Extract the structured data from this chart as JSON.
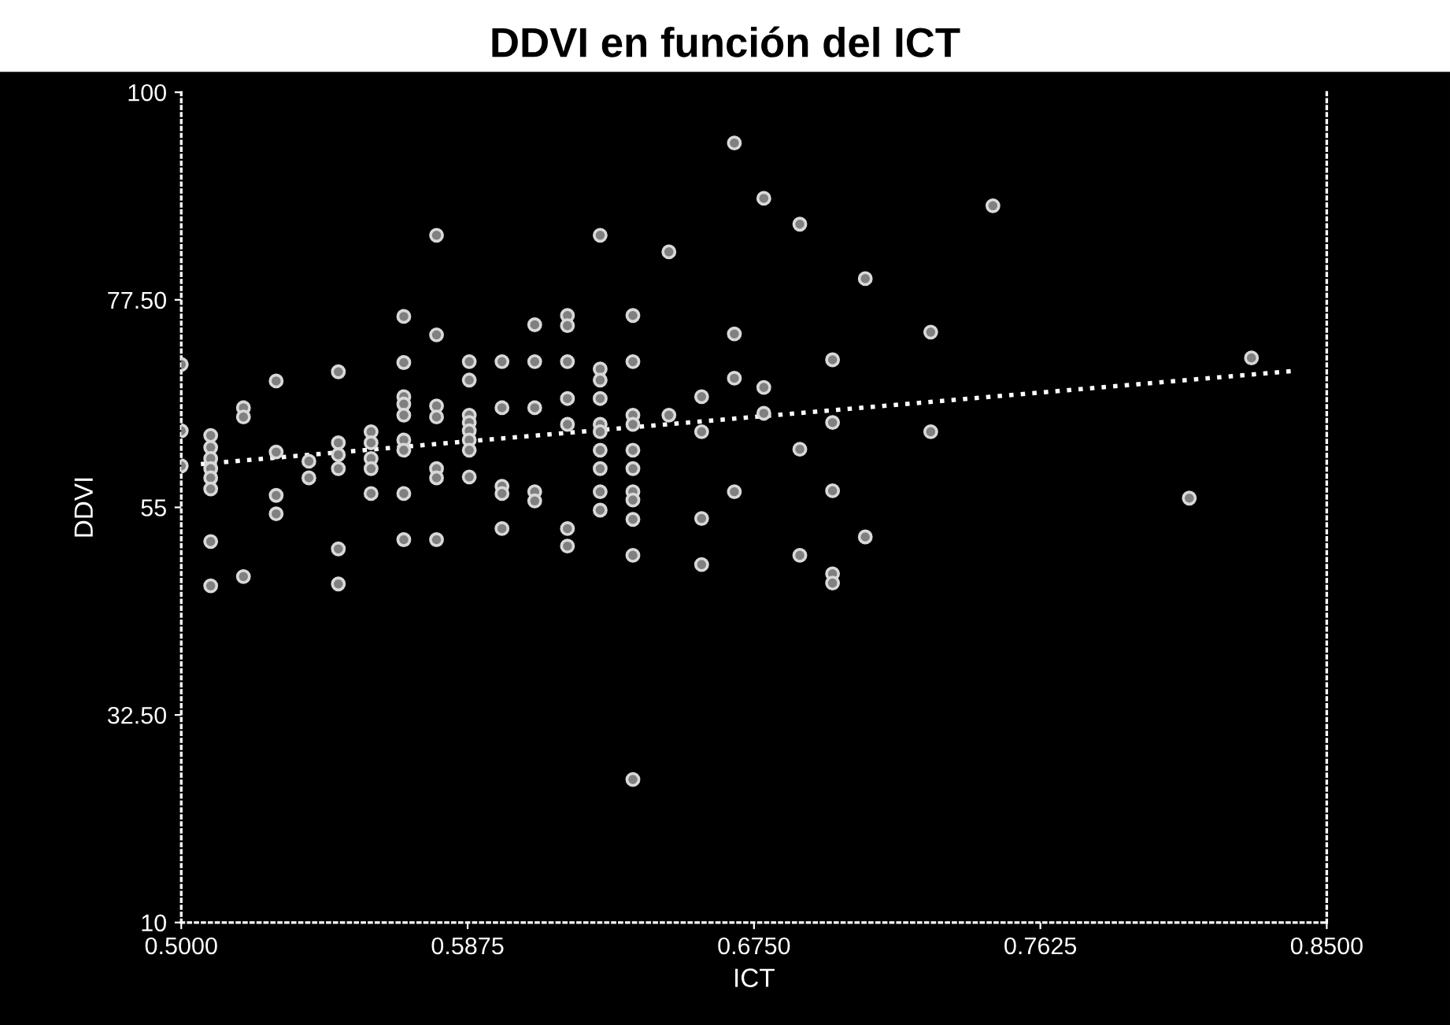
{
  "chart_data": {
    "type": "scatter",
    "title": "DDVI en función del ICT",
    "xlabel": "ICT",
    "ylabel": "DDVI",
    "xlim": [
      0.5,
      0.85
    ],
    "ylim": [
      10,
      100
    ],
    "xticks": [
      {
        "value": 0.5,
        "label": "0.5000"
      },
      {
        "value": 0.5875,
        "label": "0.5875"
      },
      {
        "value": 0.675,
        "label": "0.6750"
      },
      {
        "value": 0.7625,
        "label": "0.7625"
      },
      {
        "value": 0.85,
        "label": "0.8500"
      }
    ],
    "yticks": [
      10,
      {
        "value": 32.5,
        "label": "32.50"
      },
      55,
      {
        "value": 77.5,
        "label": "77.50"
      },
      100
    ],
    "grid": false,
    "legend": false,
    "series": [
      {
        "color": "#d9d9d9",
        "marker": "circle",
        "x": [
          0.5,
          0.5,
          0.5,
          0.509,
          0.509,
          0.509,
          0.509,
          0.509,
          0.509,
          0.509,
          0.509,
          0.519,
          0.519,
          0.519,
          0.529,
          0.529,
          0.529,
          0.529,
          0.539,
          0.539,
          0.548,
          0.548,
          0.548,
          0.548,
          0.548,
          0.548,
          0.558,
          0.558,
          0.558,
          0.558,
          0.558,
          0.568,
          0.568,
          0.568,
          0.568,
          0.568,
          0.568,
          0.568,
          0.568,
          0.568,
          0.578,
          0.578,
          0.578,
          0.578,
          0.578,
          0.578,
          0.578,
          0.588,
          0.588,
          0.588,
          0.588,
          0.588,
          0.588,
          0.588,
          0.588,
          0.598,
          0.598,
          0.598,
          0.598,
          0.598,
          0.608,
          0.608,
          0.608,
          0.608,
          0.608,
          0.618,
          0.618,
          0.618,
          0.618,
          0.618,
          0.618,
          0.618,
          0.628,
          0.628,
          0.628,
          0.628,
          0.628,
          0.628,
          0.628,
          0.628,
          0.628,
          0.628,
          0.638,
          0.638,
          0.638,
          0.638,
          0.638,
          0.638,
          0.638,
          0.638,
          0.638,
          0.638,
          0.638,
          0.649,
          0.649,
          0.659,
          0.659,
          0.659,
          0.659,
          0.669,
          0.669,
          0.669,
          0.669,
          0.678,
          0.678,
          0.678,
          0.689,
          0.689,
          0.689,
          0.699,
          0.699,
          0.699,
          0.699,
          0.699,
          0.709,
          0.709,
          0.729,
          0.729,
          0.748,
          0.808,
          0.827
        ],
        "values": [
          70.5,
          63.3,
          59.5,
          62.8,
          61.5,
          60.3,
          59.2,
          58.2,
          57.0,
          51.3,
          46.5,
          65.8,
          64.8,
          47.5,
          68.7,
          61.0,
          56.3,
          54.3,
          60.0,
          58.2,
          69.7,
          62.0,
          60.7,
          59.2,
          50.5,
          46.7,
          63.2,
          62.0,
          60.3,
          59.2,
          56.5,
          75.7,
          70.7,
          67.0,
          66.2,
          65.0,
          62.3,
          61.2,
          56.5,
          51.5,
          84.5,
          73.7,
          66.0,
          64.8,
          59.2,
          58.2,
          51.5,
          70.8,
          68.8,
          65.0,
          64.2,
          63.3,
          62.3,
          61.2,
          58.3,
          70.8,
          65.8,
          57.3,
          56.5,
          52.7,
          74.8,
          70.8,
          65.8,
          56.7,
          55.7,
          75.8,
          74.7,
          70.8,
          66.8,
          64.0,
          52.7,
          50.8,
          84.5,
          70.0,
          68.8,
          66.8,
          64.0,
          63.2,
          61.2,
          59.2,
          56.7,
          54.7,
          75.8,
          70.8,
          65.0,
          64.0,
          61.2,
          59.2,
          56.7,
          55.8,
          53.7,
          49.8,
          25.5,
          82.7,
          65.0,
          67.0,
          63.2,
          53.8,
          48.8,
          94.5,
          73.8,
          69.0,
          56.7,
          88.5,
          68.0,
          65.2,
          85.7,
          61.3,
          49.8,
          71.0,
          64.2,
          56.8,
          47.8,
          46.8,
          79.8,
          51.8,
          74.0,
          63.2,
          87.7,
          56.0,
          71.2
        ]
      },
      {
        "type": "line",
        "color": "#ffffff",
        "marker": "none",
        "line_style": "dotted",
        "x": [
          0.506,
          0.84
        ],
        "values": [
          59.7,
          69.8
        ]
      }
    ]
  }
}
